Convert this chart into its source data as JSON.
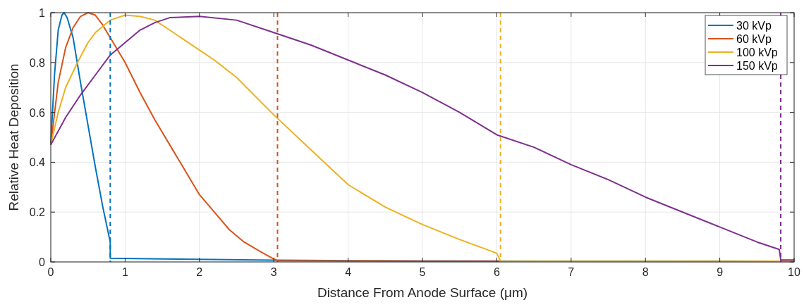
{
  "chart_data": {
    "type": "line",
    "xlabel": "Distance From Anode Surface (μm)",
    "ylabel": "Relative Heat Deposition",
    "xlim": [
      0,
      10
    ],
    "ylim": [
      0,
      1
    ],
    "xticks": [
      0,
      1,
      2,
      3,
      4,
      5,
      6,
      7,
      8,
      9,
      10
    ],
    "yticks": [
      0,
      0.2,
      0.4,
      0.6,
      0.8,
      1
    ],
    "grid": true,
    "legend": "top right",
    "line_style": "solid",
    "series": [
      {
        "name": "30 kVp",
        "color": "#0072bd",
        "x": [
          0,
          0.05,
          0.1,
          0.15,
          0.18,
          0.22,
          0.3,
          0.4,
          0.5,
          0.6,
          0.7,
          0.8,
          0.8,
          1.5,
          3,
          5,
          10
        ],
        "values": [
          0.47,
          0.75,
          0.93,
          0.99,
          1.0,
          0.98,
          0.9,
          0.72,
          0.55,
          0.38,
          0.22,
          0.08,
          0.015,
          0.012,
          0.007,
          0.004,
          0.003
        ]
      },
      {
        "name": "60 kVp",
        "color": "#d95319",
        "x": [
          0,
          0.1,
          0.2,
          0.3,
          0.4,
          0.5,
          0.6,
          0.7,
          0.8,
          1.0,
          1.2,
          1.4,
          1.6,
          1.8,
          2.0,
          2.2,
          2.4,
          2.6,
          2.8,
          3.0,
          3.05,
          5,
          10
        ],
        "values": [
          0.47,
          0.72,
          0.86,
          0.94,
          0.985,
          1.0,
          0.99,
          0.95,
          0.9,
          0.8,
          0.68,
          0.57,
          0.47,
          0.37,
          0.27,
          0.2,
          0.13,
          0.08,
          0.045,
          0.012,
          0.005,
          0.003,
          0.002
        ]
      },
      {
        "name": "100 kVp",
        "color": "#edb120",
        "x": [
          0,
          0.1,
          0.2,
          0.36,
          0.5,
          0.6,
          0.8,
          1.0,
          1.2,
          1.4,
          1.6,
          1.8,
          2.0,
          2.2,
          2.5,
          3.0,
          3.5,
          4.0,
          4.5,
          5.0,
          5.5,
          6.0,
          6.05,
          10
        ],
        "values": [
          0.47,
          0.6,
          0.7,
          0.8,
          0.88,
          0.92,
          0.97,
          0.99,
          0.985,
          0.97,
          0.93,
          0.89,
          0.85,
          0.81,
          0.74,
          0.59,
          0.45,
          0.31,
          0.22,
          0.15,
          0.09,
          0.035,
          0.003,
          0.003
        ]
      },
      {
        "name": "150 kVp",
        "color": "#7e2f8e",
        "x": [
          0,
          0.2,
          0.4,
          0.6,
          0.8,
          1.0,
          1.2,
          1.4,
          1.6,
          2.0,
          2.5,
          3.0,
          3.5,
          4.0,
          4.5,
          5.0,
          5.5,
          6.0,
          6.5,
          7.0,
          7.5,
          8.0,
          8.5,
          9.0,
          9.5,
          9.8,
          9.82,
          10
        ],
        "values": [
          0.47,
          0.58,
          0.67,
          0.75,
          0.83,
          0.88,
          0.93,
          0.96,
          0.98,
          0.985,
          0.97,
          0.92,
          0.87,
          0.81,
          0.75,
          0.68,
          0.6,
          0.51,
          0.46,
          0.39,
          0.33,
          0.26,
          0.2,
          0.14,
          0.08,
          0.05,
          0.008,
          0.008
        ]
      }
    ],
    "ref_lines": [
      {
        "axis": "x",
        "value": 0.8,
        "color": "#0072bd",
        "line_style": "dashed"
      },
      {
        "axis": "x",
        "value": 3.05,
        "color": "#d95319",
        "line_style": "dashed"
      },
      {
        "axis": "x",
        "value": 6.05,
        "color": "#edb120",
        "line_style": "dashed"
      },
      {
        "axis": "x",
        "value": 9.82,
        "color": "#7e2f8e",
        "line_style": "dashed"
      }
    ]
  }
}
